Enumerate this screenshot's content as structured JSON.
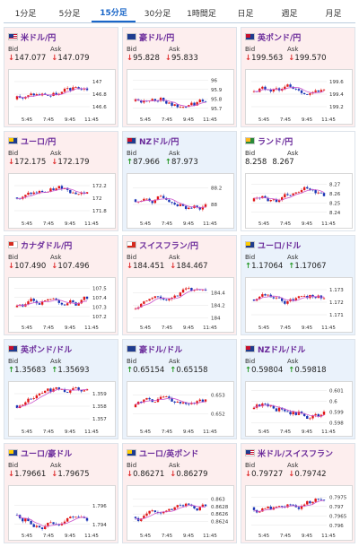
{
  "tabs": [
    {
      "label": "1分足",
      "active": false
    },
    {
      "label": "5分足",
      "active": false
    },
    {
      "label": "15分足",
      "active": true
    },
    {
      "label": "30分足",
      "active": false
    },
    {
      "label": "1時間足",
      "active": false
    },
    {
      "label": "日足",
      "active": false
    },
    {
      "label": "週足",
      "active": false
    },
    {
      "label": "月足",
      "active": false
    }
  ],
  "labels": {
    "bid": "Bid",
    "ask": "Ask"
  },
  "x_ticks": [
    "5:45",
    "7:45",
    "9:45",
    "11:45"
  ],
  "colors": {
    "bull": "#e01818",
    "bear": "#1a35b5",
    "ma": "#cc55cc",
    "down_bg": "#fdeeee",
    "up_bg": "#eaf2fb"
  },
  "pairs": [
    {
      "name": "米ドル/円",
      "flag": "us-flag",
      "dir": "down",
      "bid": "147.077",
      "ask": "147.079",
      "y_ticks": [
        "147",
        "146.8",
        "146.6"
      ],
      "ylim": [
        146.5,
        147.1
      ]
    },
    {
      "name": "豪ドル/円",
      "flag": "au-flag",
      "dir": "down",
      "bid": "95.828",
      "ask": "95.833",
      "y_ticks": [
        "96",
        "95.9",
        "95.8",
        "95.7"
      ],
      "ylim": [
        95.65,
        96.05
      ]
    },
    {
      "name": "英ポンド/円",
      "flag": "uk-flag",
      "dir": "down",
      "bid": "199.563",
      "ask": "199.570",
      "y_ticks": [
        "199.6",
        "199.4",
        "199.2"
      ],
      "ylim": [
        199.1,
        199.7
      ]
    },
    {
      "name": "ユーロ/円",
      "flag": "eu-flag",
      "dir": "down",
      "bid": "172.175",
      "ask": "172.179",
      "y_ticks": [
        "172.2",
        "172",
        "171.8"
      ],
      "ylim": [
        171.7,
        172.3
      ]
    },
    {
      "name": "NZドル/円",
      "flag": "nz-flag",
      "dir": "up",
      "bid": "87.966",
      "ask": "87.973",
      "y_ticks": [
        "88.2",
        "88"
      ],
      "ylim": [
        87.85,
        88.3
      ]
    },
    {
      "name": "ランド/円",
      "flag": "za-flag",
      "dir": "none",
      "bid": "8.258",
      "ask": "8.267",
      "y_ticks": [
        "8.27",
        "8.26",
        "8.25",
        "8.24"
      ],
      "ylim": [
        8.235,
        8.275
      ]
    },
    {
      "name": "カナダドル/円",
      "flag": "ca-flag",
      "dir": "down",
      "bid": "107.490",
      "ask": "107.496",
      "y_ticks": [
        "107.5",
        "107.4",
        "107.3",
        "107.2"
      ],
      "ylim": [
        107.15,
        107.55
      ]
    },
    {
      "name": "スイスフラン/円",
      "flag": "ch-flag",
      "dir": "down",
      "bid": "184.451",
      "ask": "184.467",
      "y_ticks": [
        "184.4",
        "184.2",
        "184"
      ],
      "ylim": [
        183.95,
        184.55
      ]
    },
    {
      "name": "ユーロ/ドル",
      "flag": "eu-flag",
      "dir": "up",
      "bid": "1.17064",
      "ask": "1.17067",
      "y_ticks": [
        "1.173",
        "1.172",
        "1.171"
      ],
      "ylim": [
        1.1705,
        1.1735
      ]
    },
    {
      "name": "英ポンド/ドル",
      "flag": "uk-flag",
      "dir": "up",
      "bid": "1.35683",
      "ask": "1.35693",
      "y_ticks": [
        "1.359",
        "1.358",
        "1.357"
      ],
      "ylim": [
        1.3565,
        1.3595
      ]
    },
    {
      "name": "豪ドル/ドル",
      "flag": "au-flag",
      "dir": "up",
      "bid": "0.65154",
      "ask": "0.65158",
      "y_ticks": [
        "0.653",
        "0.652"
      ],
      "ylim": [
        0.6514,
        0.6534
      ]
    },
    {
      "name": "NZドル/ドル",
      "flag": "nz-flag",
      "dir": "up",
      "bid": "0.59804",
      "ask": "0.59818",
      "y_ticks": [
        "0.601",
        "0.6",
        "0.599",
        "0.598"
      ],
      "ylim": [
        0.5978,
        0.6013
      ]
    },
    {
      "name": "ユーロ/豪ドル",
      "flag": "eu-flag",
      "dir": "down",
      "bid": "1.79661",
      "ask": "1.79675",
      "y_ticks": [
        "1.796",
        "1.794"
      ],
      "ylim": [
        1.7935,
        1.7975
      ]
    },
    {
      "name": "ユーロ/英ポンド",
      "flag": "eu-flag",
      "dir": "down",
      "bid": "0.86271",
      "ask": "0.86279",
      "y_ticks": [
        "0.863",
        "0.8628",
        "0.8626",
        "0.8624"
      ],
      "ylim": [
        0.8622,
        0.8632
      ]
    },
    {
      "name": "米ドル/スイスフラン",
      "flag": "us-flag",
      "dir": "down",
      "bid": "0.79727",
      "ask": "0.79742",
      "y_ticks": [
        "0.7975",
        "0.797",
        "0.7965",
        "0.796"
      ],
      "ylim": [
        0.7958,
        0.7978
      ]
    }
  ]
}
